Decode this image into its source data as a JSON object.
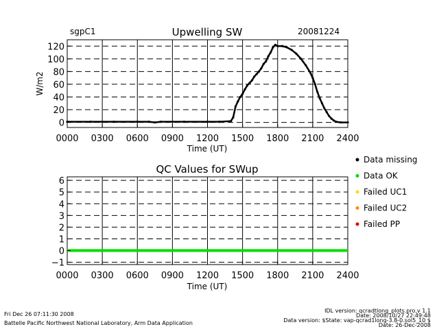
{
  "header": {
    "site": "sgpC1",
    "date": "20081224"
  },
  "chart_data": [
    {
      "type": "scatter",
      "title": "Upwelling SW",
      "xlabel": "Time (UT)",
      "ylabel": "W/m2",
      "xlim": [
        0,
        24
      ],
      "ylim": [
        -8,
        130
      ],
      "x_ticks": [
        0,
        3,
        6,
        9,
        12,
        15,
        18,
        21,
        24
      ],
      "x_tick_labels": [
        "0000",
        "0300",
        "0600",
        "0900",
        "1200",
        "1500",
        "1800",
        "2100",
        "2400"
      ],
      "y_ticks": [
        0,
        20,
        40,
        60,
        80,
        100,
        120
      ],
      "y_tick_labels": [
        "0",
        "20",
        "40",
        "60",
        "80",
        "100",
        "120"
      ],
      "grid": true,
      "series": [
        {
          "color": "#000000",
          "x": [
            0,
            2,
            4,
            6,
            7,
            7.5,
            8,
            10,
            12,
            13,
            14,
            14.2,
            14.4,
            14.6,
            14.8,
            15,
            15.2,
            15.4,
            15.6,
            15.8,
            16,
            16.2,
            16.4,
            16.6,
            16.8,
            17,
            17.2,
            17.4,
            17.6,
            17.8,
            18,
            18.4,
            18.8,
            19.2,
            19.6,
            20,
            20.4,
            20.8,
            21,
            21.2,
            21.4,
            21.6,
            21.8,
            22,
            22.2,
            22.4,
            22.6,
            22.8,
            23,
            23.4,
            24
          ],
          "y": [
            1,
            1,
            1,
            1,
            1,
            0,
            1,
            1,
            1,
            1,
            2,
            8,
            25,
            33,
            40,
            45,
            52,
            58,
            62,
            66,
            72,
            76,
            80,
            85,
            92,
            96,
            104,
            110,
            118,
            122,
            120,
            120,
            118,
            114,
            108,
            100,
            90,
            78,
            70,
            60,
            48,
            38,
            30,
            22,
            16,
            10,
            6,
            3,
            1,
            0,
            0
          ]
        }
      ]
    },
    {
      "type": "line",
      "title": "QC Values for SWup",
      "xlabel": "Time (UT)",
      "ylabel": "",
      "xlim": [
        0,
        24
      ],
      "ylim": [
        -1.2,
        6.3
      ],
      "x_ticks": [
        0,
        3,
        6,
        9,
        12,
        15,
        18,
        21,
        24
      ],
      "x_tick_labels": [
        "0000",
        "0300",
        "0600",
        "0900",
        "1200",
        "1500",
        "1800",
        "2100",
        "2400"
      ],
      "y_ticks": [
        -1,
        0,
        1,
        2,
        3,
        4,
        5,
        6
      ],
      "y_tick_labels": [
        "−1",
        "0",
        "1",
        "2",
        "3",
        "4",
        "5",
        "6"
      ],
      "grid": true,
      "series": [
        {
          "color": "#00dd00",
          "x": [
            0,
            24
          ],
          "y": [
            0,
            0
          ]
        }
      ],
      "legend": {
        "placement": "right",
        "entries": [
          {
            "label": "Data missing",
            "color": "#000000"
          },
          {
            "label": "Data OK",
            "color": "#00dd00"
          },
          {
            "label": "Failed UC1",
            "color": "#f5e000"
          },
          {
            "label": "Failed UC2",
            "color": "#ff8c00"
          },
          {
            "label": "Failed PP",
            "color": "#e00000"
          }
        ]
      }
    }
  ],
  "footer": {
    "timestamp": "Fri Dec 26 07:11:30 2008",
    "org": "Battelle Pacific Northwest National Laboratory, Arm Data Application",
    "idl_version": "IDL version: qcradtlong_plots.pro,v 1.1",
    "idl_date": "Date: 2008/10/27 22:49:48",
    "data_version": "Data version: $State: vap-qcrad1long-3.8-0.sol5_10 $",
    "data_date": "Date: 26-Dec-2008"
  }
}
